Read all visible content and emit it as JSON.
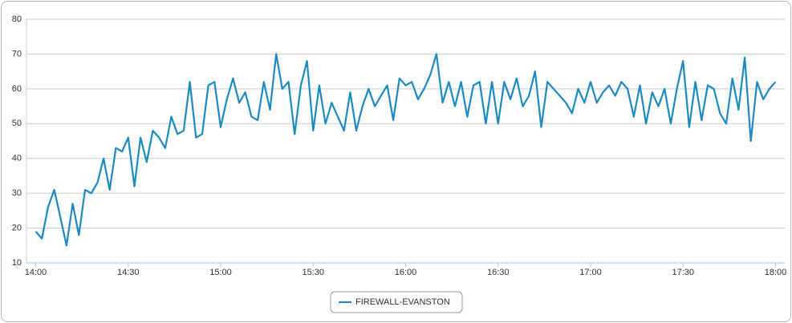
{
  "chart_data": {
    "type": "line",
    "x": [
      "14:00",
      "14:02",
      "14:04",
      "14:06",
      "14:08",
      "14:10",
      "14:12",
      "14:14",
      "14:16",
      "14:18",
      "14:20",
      "14:22",
      "14:24",
      "14:26",
      "14:28",
      "14:30",
      "14:32",
      "14:34",
      "14:36",
      "14:38",
      "14:40",
      "14:42",
      "14:44",
      "14:46",
      "14:48",
      "14:50",
      "14:52",
      "14:54",
      "14:56",
      "14:58",
      "15:00",
      "15:02",
      "15:04",
      "15:06",
      "15:08",
      "15:10",
      "15:12",
      "15:14",
      "15:16",
      "15:18",
      "15:20",
      "15:22",
      "15:24",
      "15:26",
      "15:28",
      "15:30",
      "15:32",
      "15:34",
      "15:36",
      "15:38",
      "15:40",
      "15:42",
      "15:44",
      "15:46",
      "15:48",
      "15:50",
      "15:52",
      "15:54",
      "15:56",
      "15:58",
      "16:00",
      "16:02",
      "16:04",
      "16:06",
      "16:08",
      "16:10",
      "16:12",
      "16:14",
      "16:16",
      "16:18",
      "16:20",
      "16:22",
      "16:24",
      "16:26",
      "16:28",
      "16:30",
      "16:32",
      "16:34",
      "16:36",
      "16:38",
      "16:40",
      "16:42",
      "16:44",
      "16:46",
      "16:48",
      "16:50",
      "16:52",
      "16:54",
      "16:56",
      "16:58",
      "17:00",
      "17:02",
      "17:04",
      "17:06",
      "17:08",
      "17:10",
      "17:12",
      "17:14",
      "17:16",
      "17:18",
      "17:20",
      "17:22",
      "17:24",
      "17:26",
      "17:28",
      "17:30",
      "17:32",
      "17:34",
      "17:36",
      "17:38",
      "17:40",
      "17:42",
      "17:44",
      "17:46",
      "17:48",
      "17:50",
      "17:52",
      "17:54",
      "17:56",
      "17:58",
      "18:00"
    ],
    "series": [
      {
        "name": "FIREWALL-EVANSTON",
        "color": "#1b8ac3",
        "values": [
          19,
          17,
          26,
          31,
          23,
          15,
          27,
          18,
          31,
          30,
          33,
          40,
          31,
          43,
          42,
          46,
          32,
          46,
          39,
          48,
          46,
          43,
          52,
          47,
          48,
          62,
          46,
          47,
          61,
          62,
          49,
          57,
          63,
          56,
          59,
          52,
          51,
          62,
          54,
          70,
          60,
          62,
          47,
          61,
          68,
          48,
          61,
          50,
          56,
          52,
          48,
          59,
          48,
          55,
          60,
          55,
          58,
          61,
          51,
          63,
          61,
          62,
          57,
          60,
          64,
          70,
          56,
          62,
          55,
          62,
          52,
          61,
          62,
          50,
          62,
          50,
          62,
          57,
          63,
          55,
          58,
          65,
          49,
          62,
          60,
          58,
          56,
          53,
          60,
          56,
          62,
          56,
          59,
          61,
          58,
          62,
          60,
          52,
          61,
          50,
          59,
          55,
          60,
          50,
          60,
          68,
          49,
          62,
          51,
          61,
          60,
          53,
          50,
          63,
          54,
          69,
          45,
          62,
          57,
          60,
          62
        ]
      }
    ],
    "xlim": [
      "13:57",
      "18:03"
    ],
    "xticks": [
      "14:00",
      "14:30",
      "15:00",
      "15:30",
      "16:00",
      "16:30",
      "17:00",
      "17:30",
      "18:00"
    ],
    "ylim": [
      10,
      80
    ],
    "yticks": [
      10,
      20,
      30,
      40,
      50,
      60,
      70,
      80
    ],
    "grid": true,
    "legend": "bottom"
  }
}
